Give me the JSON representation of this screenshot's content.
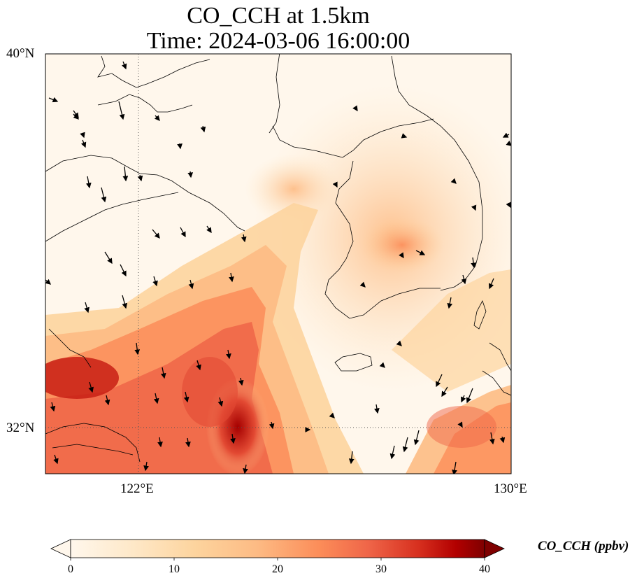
{
  "title": "CO_CCH at 1.5km",
  "subtitle": "Time: 2024-03-06 16:00:00",
  "lat_labels": [
    "40°N",
    "32°N"
  ],
  "lon_labels": [
    "122°E",
    "130°E"
  ],
  "colorbar": {
    "label": "CO_CCH (ppbv)",
    "ticks": [
      "0",
      "10",
      "20",
      "30",
      "40"
    ],
    "range": [
      0,
      40
    ],
    "colormap": "OrRd",
    "extend": "both"
  },
  "map_extent": {
    "lon": [
      120,
      130
    ],
    "lat": [
      31,
      40
    ]
  },
  "gridlines": {
    "lon": [
      122
    ],
    "lat": [
      32
    ],
    "style": "dotted"
  },
  "colors": {
    "low": "#fff7ec",
    "mid": "#fc8d59",
    "high": "#7f0000",
    "coast": "#000000"
  }
}
